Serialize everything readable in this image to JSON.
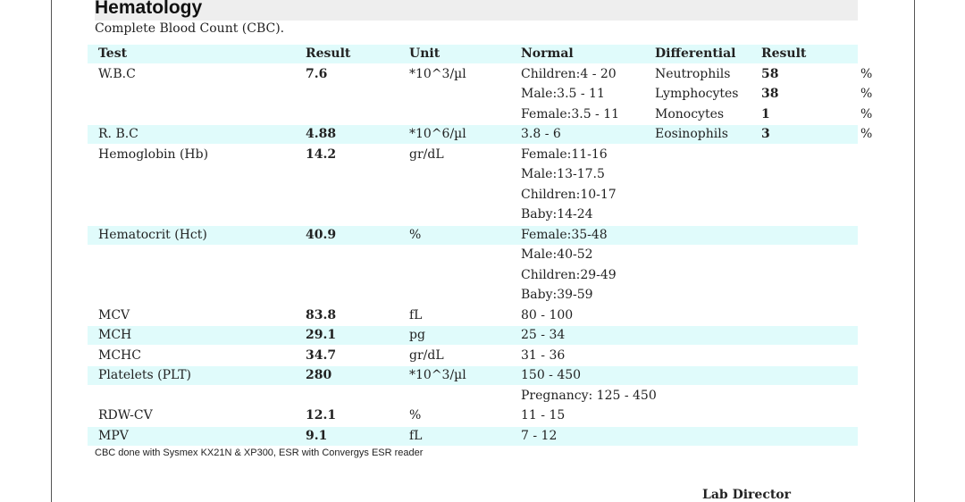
{
  "section": {
    "title": "Hematology",
    "subtitle": "Complete Blood Count (CBC)."
  },
  "table": {
    "headers": {
      "test": "Test",
      "result": "Result",
      "unit": "Unit",
      "normal": "Normal",
      "differential": "Differential",
      "diff_result": "Result"
    },
    "rows": [
      {
        "test": "W.B.C",
        "result": "7.6",
        "unit": "*10^3/µl",
        "normal": [
          "Children:4 - 20",
          "Male:3.5 - 11",
          "Female:3.5 - 11"
        ]
      },
      {
        "test": "R. B.C",
        "result": "4.88",
        "unit": "*10^6/µl",
        "normal": [
          "3.8 - 6"
        ]
      },
      {
        "test": "Hemoglobin (Hb)",
        "result": "14.2",
        "unit": "gr/dL",
        "normal": [
          "Female:11-16",
          "Male:13-17.5",
          "Children:10-17",
          "Baby:14-24"
        ]
      },
      {
        "test": "Hematocrit (Hct)",
        "result": "40.9",
        "unit": "%",
        "normal": [
          "Female:35-48",
          "Male:40-52",
          "Children:29-49",
          "Baby:39-59"
        ]
      },
      {
        "test": "MCV",
        "result": "83.8",
        "unit": "fL",
        "normal": [
          "80 - 100"
        ]
      },
      {
        "test": "MCH",
        "result": "29.1",
        "unit": "pg",
        "normal": [
          "25 - 34"
        ]
      },
      {
        "test": "MCHC",
        "result": "34.7",
        "unit": "gr/dL",
        "normal": [
          "31 - 36"
        ]
      },
      {
        "test": "Platelets (PLT)",
        "result": "280",
        "unit": "*10^3/µl",
        "normal": [
          "150 - 450",
          "Pregnancy: 125 - 450"
        ]
      },
      {
        "test": "RDW-CV",
        "result": "12.1",
        "unit": "%",
        "normal": [
          "11 - 15"
        ]
      },
      {
        "test": "MPV",
        "result": "9.1",
        "unit": "fL",
        "normal": [
          "7 - 12"
        ]
      }
    ],
    "differential": [
      {
        "name": "Neutrophils",
        "result": "58",
        "unit": "%"
      },
      {
        "name": "Lymphocytes",
        "result": "38",
        "unit": "%"
      },
      {
        "name": "Monocytes",
        "result": "1",
        "unit": "%"
      },
      {
        "name": "Eosinophils",
        "result": "3",
        "unit": "%"
      }
    ]
  },
  "footnote": "CBC done with Sysmex KX21N & XP300, ESR with Convergys ESR reader",
  "signature": "Lab Director"
}
